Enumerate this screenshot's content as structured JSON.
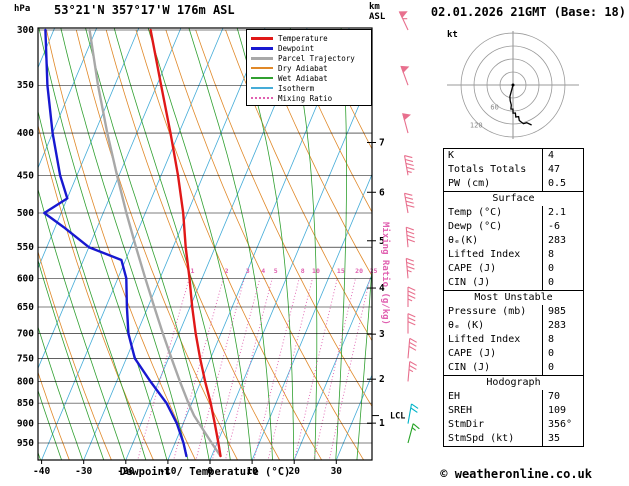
{
  "header": {
    "pressure_unit_label": "hPa",
    "station_title": "53°21'N 357°17'W 176m ASL",
    "altitude_unit_label_1": "km",
    "altitude_unit_label_2": "ASL",
    "datetime_title": "02.01.2026 21GMT (Base: 18)"
  },
  "axes": {
    "pressure_ticks_hpa": [
      300,
      350,
      400,
      450,
      500,
      550,
      600,
      650,
      700,
      750,
      800,
      850,
      900,
      950
    ],
    "temperature_ticks_c": [
      -40,
      -30,
      -20,
      -10,
      0,
      10,
      20,
      30
    ],
    "km_ticks": [
      1,
      2,
      3,
      4,
      5,
      6,
      7
    ],
    "x_axis_label": "Dewpoint / Temperature (°C)",
    "mixing_ratio_axis_label": "Mixing Ratio (g/kg)",
    "lcl_label": "LCL"
  },
  "legend": {
    "items": [
      {
        "label": "Temperature",
        "color": "#e01818",
        "thick": true,
        "dotted": false
      },
      {
        "label": "Dewpoint",
        "color": "#1818d0",
        "thick": true,
        "dotted": false
      },
      {
        "label": "Parcel Trajectory",
        "color": "#a8a8a8",
        "thick": true,
        "dotted": false
      },
      {
        "label": "Dry Adiabat",
        "color": "#e08828",
        "thick": false,
        "dotted": false
      },
      {
        "label": "Wet Adiabat",
        "color": "#30a030",
        "thick": false,
        "dotted": false
      },
      {
        "label": "Isotherm",
        "color": "#45acd8",
        "thick": false,
        "dotted": false
      },
      {
        "label": "Mixing Ratio",
        "color": "#e060b0",
        "thick": false,
        "dotted": true
      }
    ]
  },
  "chart_data": {
    "type": "line",
    "subtype": "skew-t-log-p-sounding",
    "title": "53°21'N 357°17'W 176m ASL",
    "pressure_axis_hpa": [
      300,
      1000
    ],
    "temperature_axis_c": [
      -40,
      35
    ],
    "temperature_profile": [
      [
        985,
        2.1
      ],
      [
        950,
        0.3
      ],
      [
        900,
        -2.5
      ],
      [
        850,
        -5.5
      ],
      [
        800,
        -9
      ],
      [
        750,
        -12.5
      ],
      [
        700,
        -16
      ],
      [
        650,
        -19.5
      ],
      [
        600,
        -23
      ],
      [
        550,
        -27
      ],
      [
        500,
        -31
      ],
      [
        450,
        -36
      ],
      [
        400,
        -42
      ],
      [
        350,
        -49
      ],
      [
        300,
        -57
      ]
    ],
    "dewpoint_profile": [
      [
        985,
        -6
      ],
      [
        950,
        -8
      ],
      [
        900,
        -11.5
      ],
      [
        850,
        -16
      ],
      [
        800,
        -22
      ],
      [
        750,
        -28
      ],
      [
        700,
        -32
      ],
      [
        650,
        -35
      ],
      [
        600,
        -38
      ],
      [
        570,
        -41
      ],
      [
        550,
        -50
      ],
      [
        520,
        -58
      ],
      [
        500,
        -64
      ],
      [
        480,
        -60
      ],
      [
        450,
        -64
      ],
      [
        400,
        -70
      ],
      [
        350,
        -76
      ],
      [
        300,
        -82
      ]
    ],
    "parcel_profile": [
      [
        985,
        2.1
      ],
      [
        950,
        -1.3
      ],
      [
        900,
        -6.2
      ],
      [
        880,
        -8.2
      ],
      [
        850,
        -10.8
      ],
      [
        800,
        -15
      ],
      [
        750,
        -19.3
      ],
      [
        700,
        -23.8
      ],
      [
        650,
        -28.5
      ],
      [
        600,
        -33.5
      ],
      [
        550,
        -38.8
      ],
      [
        500,
        -44.5
      ],
      [
        450,
        -50.5
      ],
      [
        400,
        -57
      ],
      [
        350,
        -64
      ],
      [
        300,
        -71.5
      ]
    ],
    "lcl_pressure_hpa": 880,
    "mixing_ratio_lines_g_kg": [
      1,
      2,
      3,
      4,
      5,
      8,
      10,
      15,
      20,
      25
    ],
    "wind_barbs_kt": [
      {
        "pressure_hpa": 300,
        "dir_deg": 335,
        "speed_kt": 55,
        "color": "#e8708e"
      },
      {
        "pressure_hpa": 350,
        "dir_deg": 340,
        "speed_kt": 50,
        "color": "#e8708e"
      },
      {
        "pressure_hpa": 400,
        "dir_deg": 345,
        "speed_kt": 50,
        "color": "#e8708e"
      },
      {
        "pressure_hpa": 450,
        "dir_deg": 350,
        "speed_kt": 45,
        "color": "#e8708e"
      },
      {
        "pressure_hpa": 500,
        "dir_deg": 350,
        "speed_kt": 40,
        "color": "#e8708e"
      },
      {
        "pressure_hpa": 550,
        "dir_deg": 355,
        "speed_kt": 40,
        "color": "#e8708e"
      },
      {
        "pressure_hpa": 600,
        "dir_deg": 355,
        "speed_kt": 35,
        "color": "#e8708e"
      },
      {
        "pressure_hpa": 650,
        "dir_deg": 360,
        "speed_kt": 35,
        "color": "#e8708e"
      },
      {
        "pressure_hpa": 700,
        "dir_deg": 360,
        "speed_kt": 30,
        "color": "#e8708e"
      },
      {
        "pressure_hpa": 750,
        "dir_deg": 5,
        "speed_kt": 30,
        "color": "#e8708e"
      },
      {
        "pressure_hpa": 800,
        "dir_deg": 5,
        "speed_kt": 25,
        "color": "#e8708e"
      },
      {
        "pressure_hpa": 900,
        "dir_deg": 10,
        "speed_kt": 20,
        "color": "#00b4c8"
      },
      {
        "pressure_hpa": 950,
        "dir_deg": 15,
        "speed_kt": 15,
        "color": "#28a428"
      }
    ]
  },
  "hodograph": {
    "unit_label": "kt",
    "rings": [
      30,
      60,
      90,
      120
    ],
    "ring_labels": [
      {
        "value": "60",
        "ring": 1
      },
      {
        "value": "120",
        "ring": 3
      }
    ]
  },
  "panel": {
    "indices": [
      {
        "label": "K",
        "value": "4"
      },
      {
        "label": "Totals Totals",
        "value": "47"
      },
      {
        "label": "PW (cm)",
        "value": "0.5"
      }
    ],
    "surface": {
      "title": "Surface",
      "rows": [
        {
          "label": "Temp (°C)",
          "value": "2.1"
        },
        {
          "label": "Dewp (°C)",
          "value": "-6"
        },
        {
          "label": "θₑ(K)",
          "value": "283"
        },
        {
          "label": "Lifted Index",
          "value": "8"
        },
        {
          "label": "CAPE (J)",
          "value": "0"
        },
        {
          "label": "CIN (J)",
          "value": "0"
        }
      ]
    },
    "most_unstable": {
      "title": "Most Unstable",
      "rows": [
        {
          "label": "Pressure (mb)",
          "value": "985"
        },
        {
          "label": "θₑ (K)",
          "value": "283"
        },
        {
          "label": "Lifted Index",
          "value": "8"
        },
        {
          "label": "CAPE (J)",
          "value": "0"
        },
        {
          "label": "CIN (J)",
          "value": "0"
        }
      ]
    },
    "hodograph_stats": {
      "title": "Hodograph",
      "rows": [
        {
          "label": "EH",
          "value": "70"
        },
        {
          "label": "SREH",
          "value": "109"
        },
        {
          "label": "StmDir",
          "value": "356°"
        },
        {
          "label": "StmSpd (kt)",
          "value": "35"
        }
      ]
    }
  },
  "footer": {
    "copyright": "© weatheronline.co.uk"
  }
}
